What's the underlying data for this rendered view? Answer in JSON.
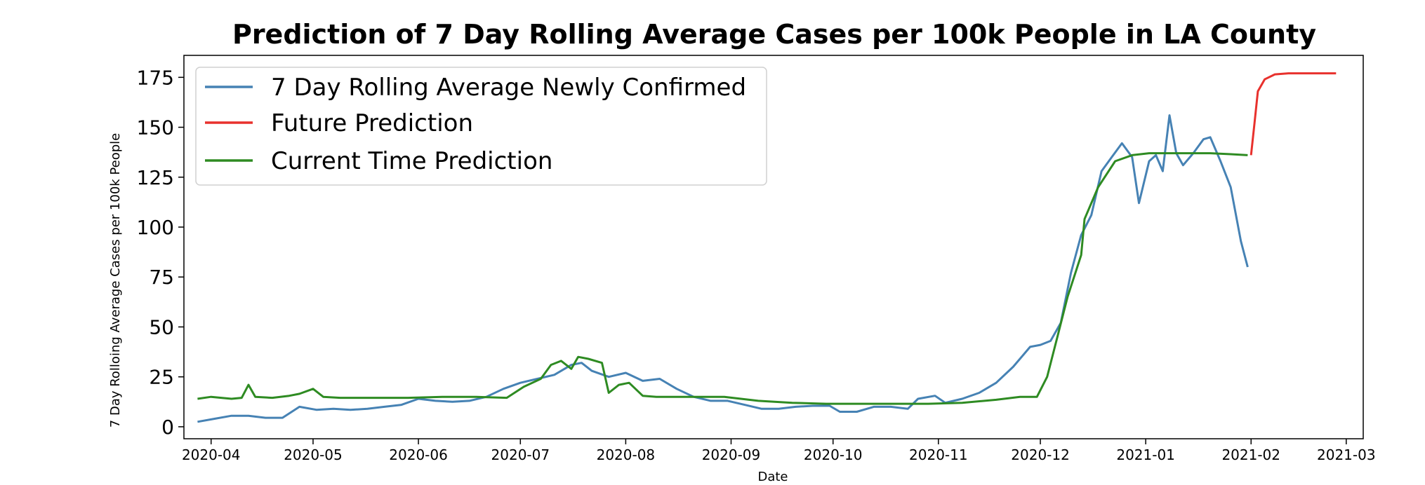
{
  "chart_data": {
    "type": "line",
    "title": "Prediction of 7 Day Rolling Average Cases per 100k People in LA County",
    "xlabel": "Date",
    "ylabel": "7 Day Rolloing Average Cases per 100k People",
    "x_ticks": [
      "2020-04",
      "2020-05",
      "2020-06",
      "2020-07",
      "2020-08",
      "2020-09",
      "2020-10",
      "2020-11",
      "2020-12",
      "2021-01",
      "2021-02",
      "2021-03"
    ],
    "y_ticks": [
      "0",
      "25",
      "50",
      "75",
      "100",
      "125",
      "150",
      "175"
    ],
    "xlim": [
      "2020-03-24",
      "2021-03-06"
    ],
    "ylim": [
      -6,
      186
    ],
    "grid": false,
    "legend": "upper left",
    "series": [
      {
        "name": "7 Day Rolling Average Newly Confirmed",
        "color": "#4682b4",
        "points": [
          [
            "2020-03-28",
            2.5
          ],
          [
            "2020-04-02",
            4
          ],
          [
            "2020-04-07",
            5.5
          ],
          [
            "2020-04-12",
            5.5
          ],
          [
            "2020-04-17",
            4.5
          ],
          [
            "2020-04-22",
            4.5
          ],
          [
            "2020-04-27",
            10
          ],
          [
            "2020-05-02",
            8.5
          ],
          [
            "2020-05-07",
            9
          ],
          [
            "2020-05-12",
            8.5
          ],
          [
            "2020-05-17",
            9
          ],
          [
            "2020-05-22",
            10
          ],
          [
            "2020-05-27",
            11
          ],
          [
            "2020-06-01",
            14
          ],
          [
            "2020-06-06",
            13
          ],
          [
            "2020-06-11",
            12.5
          ],
          [
            "2020-06-16",
            13
          ],
          [
            "2020-06-21",
            15
          ],
          [
            "2020-06-26",
            19
          ],
          [
            "2020-07-01",
            22
          ],
          [
            "2020-07-06",
            24
          ],
          [
            "2020-07-11",
            26
          ],
          [
            "2020-07-16",
            31
          ],
          [
            "2020-07-19",
            32
          ],
          [
            "2020-07-22",
            28
          ],
          [
            "2020-07-27",
            25
          ],
          [
            "2020-08-01",
            27
          ],
          [
            "2020-08-06",
            23
          ],
          [
            "2020-08-11",
            24
          ],
          [
            "2020-08-16",
            19
          ],
          [
            "2020-08-21",
            15
          ],
          [
            "2020-08-26",
            13
          ],
          [
            "2020-08-31",
            13
          ],
          [
            "2020-09-05",
            11
          ],
          [
            "2020-09-10",
            9
          ],
          [
            "2020-09-15",
            9
          ],
          [
            "2020-09-20",
            10
          ],
          [
            "2020-09-25",
            10.5
          ],
          [
            "2020-09-30",
            10.5
          ],
          [
            "2020-10-03",
            7.5
          ],
          [
            "2020-10-08",
            7.5
          ],
          [
            "2020-10-13",
            10
          ],
          [
            "2020-10-18",
            10
          ],
          [
            "2020-10-23",
            9
          ],
          [
            "2020-10-26",
            14
          ],
          [
            "2020-10-31",
            15.5
          ],
          [
            "2020-11-03",
            12
          ],
          [
            "2020-11-08",
            14
          ],
          [
            "2020-11-13",
            17
          ],
          [
            "2020-11-18",
            22
          ],
          [
            "2020-11-23",
            30
          ],
          [
            "2020-11-28",
            40
          ],
          [
            "2020-12-01",
            41
          ],
          [
            "2020-12-04",
            43
          ],
          [
            "2020-12-07",
            52
          ],
          [
            "2020-12-10",
            77
          ],
          [
            "2020-12-13",
            96
          ],
          [
            "2020-12-16",
            106
          ],
          [
            "2020-12-19",
            128
          ],
          [
            "2020-12-22",
            135
          ],
          [
            "2020-12-25",
            142
          ],
          [
            "2020-12-28",
            135
          ],
          [
            "2020-12-30",
            112
          ],
          [
            "2021-01-02",
            133
          ],
          [
            "2021-01-04",
            136
          ],
          [
            "2021-01-06",
            128
          ],
          [
            "2021-01-08",
            156
          ],
          [
            "2021-01-10",
            137
          ],
          [
            "2021-01-12",
            131
          ],
          [
            "2021-01-15",
            137
          ],
          [
            "2021-01-18",
            144
          ],
          [
            "2021-01-20",
            145
          ],
          [
            "2021-01-23",
            133
          ],
          [
            "2021-01-26",
            120
          ],
          [
            "2021-01-29",
            93
          ],
          [
            "2021-01-31",
            80
          ]
        ]
      },
      {
        "name": "Future Prediction",
        "color": "#e8312d",
        "points": [
          [
            "2021-02-01",
            136
          ],
          [
            "2021-02-02",
            152
          ],
          [
            "2021-02-03",
            168
          ],
          [
            "2021-02-05",
            174
          ],
          [
            "2021-02-08",
            176.5
          ],
          [
            "2021-02-12",
            177
          ],
          [
            "2021-02-18",
            177
          ],
          [
            "2021-02-22",
            177
          ],
          [
            "2021-02-26",
            177
          ]
        ]
      },
      {
        "name": "Current Time Prediction",
        "color": "#2e8b22",
        "points": [
          [
            "2020-03-28",
            14
          ],
          [
            "2020-04-01",
            15
          ],
          [
            "2020-04-07",
            14
          ],
          [
            "2020-04-10",
            14.5
          ],
          [
            "2020-04-12",
            21
          ],
          [
            "2020-04-14",
            15
          ],
          [
            "2020-04-19",
            14.5
          ],
          [
            "2020-04-24",
            15.5
          ],
          [
            "2020-04-27",
            16.5
          ],
          [
            "2020-05-01",
            19
          ],
          [
            "2020-05-04",
            15
          ],
          [
            "2020-05-09",
            14.5
          ],
          [
            "2020-05-19",
            14.5
          ],
          [
            "2020-05-29",
            14.5
          ],
          [
            "2020-06-08",
            15
          ],
          [
            "2020-06-18",
            15
          ],
          [
            "2020-06-27",
            14.5
          ],
          [
            "2020-07-02",
            20
          ],
          [
            "2020-07-07",
            24
          ],
          [
            "2020-07-10",
            31
          ],
          [
            "2020-07-13",
            33
          ],
          [
            "2020-07-16",
            29
          ],
          [
            "2020-07-18",
            35
          ],
          [
            "2020-07-21",
            34
          ],
          [
            "2020-07-25",
            32
          ],
          [
            "2020-07-27",
            17
          ],
          [
            "2020-07-30",
            21
          ],
          [
            "2020-08-02",
            22
          ],
          [
            "2020-08-06",
            15.5
          ],
          [
            "2020-08-10",
            15
          ],
          [
            "2020-08-20",
            15
          ],
          [
            "2020-08-30",
            15
          ],
          [
            "2020-09-09",
            13
          ],
          [
            "2020-09-19",
            12
          ],
          [
            "2020-09-29",
            11.5
          ],
          [
            "2020-10-09",
            11.5
          ],
          [
            "2020-10-19",
            11.5
          ],
          [
            "2020-10-29",
            11.5
          ],
          [
            "2020-11-08",
            12
          ],
          [
            "2020-11-18",
            13.5
          ],
          [
            "2020-11-25",
            15
          ],
          [
            "2020-11-30",
            15
          ],
          [
            "2020-12-03",
            25
          ],
          [
            "2020-12-06",
            45
          ],
          [
            "2020-12-09",
            65
          ],
          [
            "2020-12-13",
            86
          ],
          [
            "2020-12-14",
            104
          ],
          [
            "2020-12-18",
            120
          ],
          [
            "2020-12-23",
            133
          ],
          [
            "2020-12-28",
            136
          ],
          [
            "2021-01-02",
            137
          ],
          [
            "2021-01-10",
            137
          ],
          [
            "2021-01-20",
            137
          ],
          [
            "2021-01-26",
            136.5
          ],
          [
            "2021-01-31",
            136
          ]
        ]
      }
    ]
  }
}
